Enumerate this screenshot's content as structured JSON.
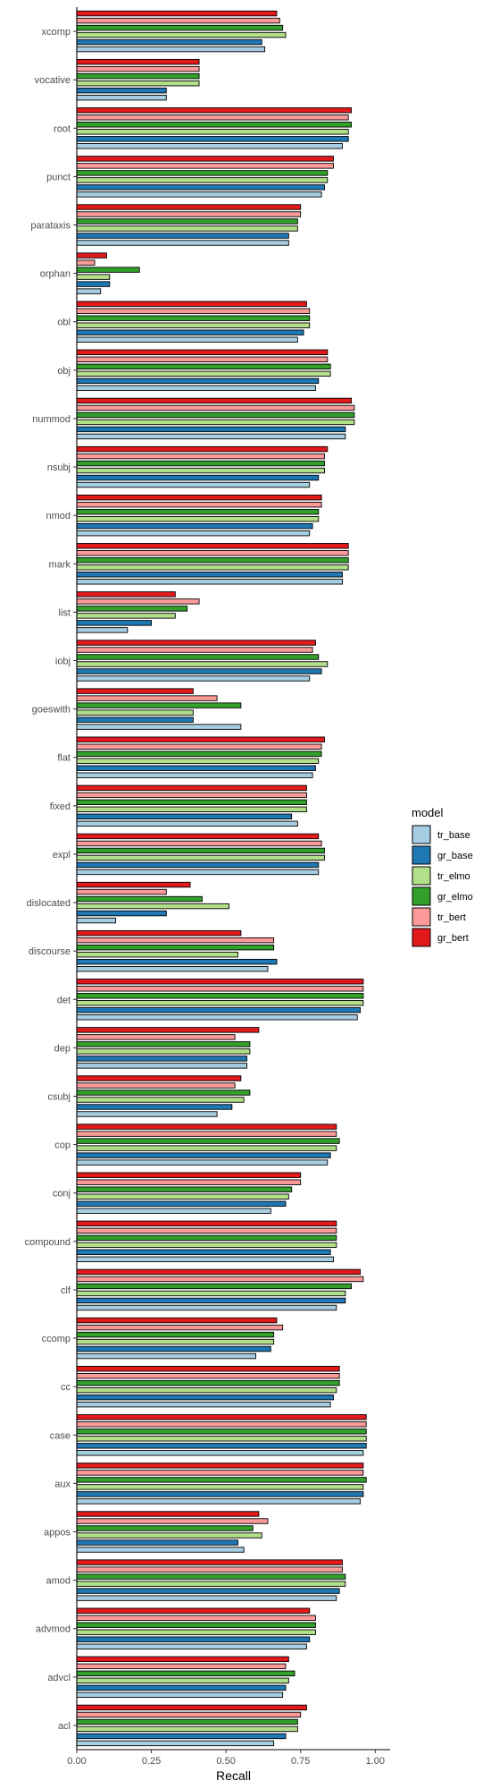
{
  "chart_data": {
    "type": "bar",
    "orientation": "horizontal",
    "title": "",
    "xlabel": "Recall",
    "ylabel": "",
    "xlim": [
      0,
      1.05
    ],
    "x_ticks": [
      "0.00",
      "0.25",
      "0.50",
      "0.75",
      "1.00"
    ],
    "x_tick_values": [
      0,
      0.25,
      0.5,
      0.75,
      1.0
    ],
    "grid": false,
    "legend_title": "model",
    "legend_position": "right",
    "categories": [
      "xcomp",
      "vocative",
      "root",
      "punct",
      "parataxis",
      "orphan",
      "obl",
      "obj",
      "nummod",
      "nsubj",
      "nmod",
      "mark",
      "list",
      "iobj",
      "goeswith",
      "flat",
      "fixed",
      "expl",
      "dislocated",
      "discourse",
      "det",
      "dep",
      "csubj",
      "cop",
      "conj",
      "compound",
      "clf",
      "ccomp",
      "cc",
      "case",
      "aux",
      "appos",
      "amod",
      "advmod",
      "advcl",
      "acl"
    ],
    "series": [
      {
        "name": "tr_base",
        "color": "#a6cee3",
        "values": [
          0.63,
          0.3,
          0.89,
          0.82,
          0.71,
          0.08,
          0.74,
          0.8,
          0.9,
          0.78,
          0.78,
          0.89,
          0.17,
          0.78,
          0.55,
          0.79,
          0.74,
          0.81,
          0.13,
          0.64,
          0.94,
          0.57,
          0.47,
          0.84,
          0.65,
          0.86,
          0.87,
          0.6,
          0.85,
          0.96,
          0.95,
          0.56,
          0.87,
          0.77,
          0.69,
          0.66
        ]
      },
      {
        "name": "gr_base",
        "color": "#1f78b4",
        "values": [
          0.62,
          0.3,
          0.91,
          0.83,
          0.71,
          0.11,
          0.76,
          0.81,
          0.9,
          0.81,
          0.79,
          0.89,
          0.25,
          0.82,
          0.39,
          0.8,
          0.72,
          0.81,
          0.3,
          0.67,
          0.95,
          0.57,
          0.52,
          0.85,
          0.7,
          0.85,
          0.9,
          0.65,
          0.86,
          0.97,
          0.96,
          0.54,
          0.88,
          0.78,
          0.7,
          0.7
        ]
      },
      {
        "name": "tr_elmo",
        "color": "#b2df8a",
        "values": [
          0.7,
          0.41,
          0.91,
          0.84,
          0.74,
          0.11,
          0.78,
          0.85,
          0.93,
          0.83,
          0.81,
          0.91,
          0.33,
          0.84,
          0.39,
          0.81,
          0.77,
          0.83,
          0.51,
          0.54,
          0.96,
          0.58,
          0.56,
          0.87,
          0.71,
          0.87,
          0.9,
          0.66,
          0.87,
          0.97,
          0.96,
          0.62,
          0.9,
          0.8,
          0.71,
          0.74
        ]
      },
      {
        "name": "gr_elmo",
        "color": "#33a02c",
        "values": [
          0.69,
          0.41,
          0.92,
          0.84,
          0.74,
          0.21,
          0.78,
          0.85,
          0.93,
          0.83,
          0.81,
          0.91,
          0.37,
          0.81,
          0.55,
          0.82,
          0.77,
          0.83,
          0.42,
          0.66,
          0.96,
          0.58,
          0.58,
          0.88,
          0.72,
          0.87,
          0.92,
          0.66,
          0.88,
          0.97,
          0.97,
          0.59,
          0.9,
          0.8,
          0.73,
          0.74
        ]
      },
      {
        "name": "tr_bert",
        "color": "#fb9a99",
        "values": [
          0.68,
          0.41,
          0.91,
          0.86,
          0.75,
          0.06,
          0.78,
          0.84,
          0.93,
          0.83,
          0.82,
          0.91,
          0.41,
          0.79,
          0.47,
          0.82,
          0.77,
          0.82,
          0.3,
          0.66,
          0.96,
          0.53,
          0.53,
          0.87,
          0.75,
          0.87,
          0.96,
          0.69,
          0.88,
          0.97,
          0.96,
          0.64,
          0.89,
          0.8,
          0.7,
          0.75
        ]
      },
      {
        "name": "gr_bert",
        "color": "#e31a1c",
        "values": [
          0.67,
          0.41,
          0.92,
          0.86,
          0.75,
          0.1,
          0.77,
          0.84,
          0.92,
          0.84,
          0.82,
          0.91,
          0.33,
          0.8,
          0.39,
          0.83,
          0.77,
          0.81,
          0.38,
          0.55,
          0.96,
          0.61,
          0.55,
          0.87,
          0.75,
          0.87,
          0.95,
          0.67,
          0.88,
          0.97,
          0.96,
          0.61,
          0.89,
          0.78,
          0.71,
          0.77
        ]
      }
    ]
  }
}
